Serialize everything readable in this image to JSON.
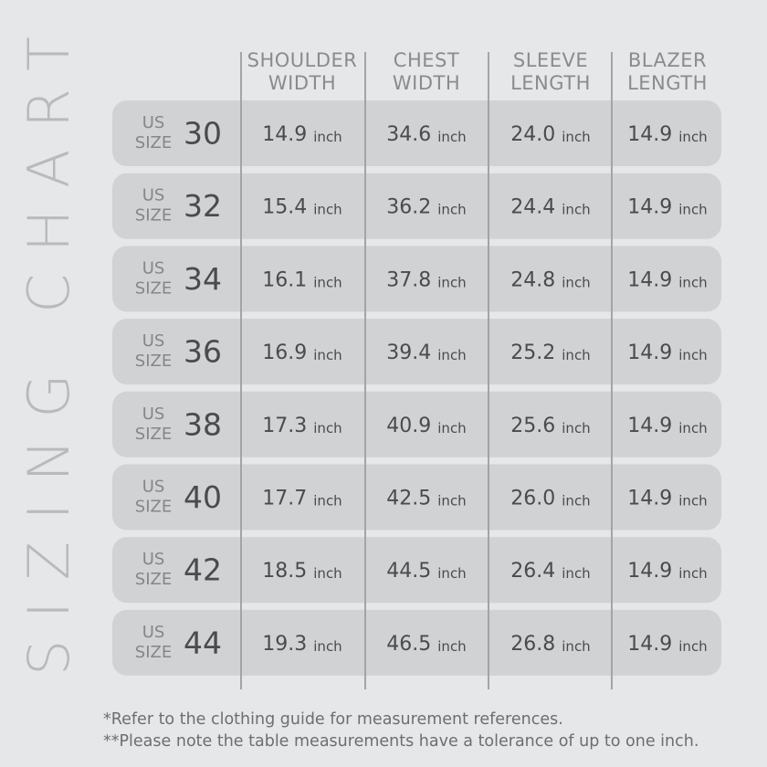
{
  "title": "SIZING CHART",
  "table": {
    "headers": [
      [
        "SHOULDER",
        "WIDTH"
      ],
      [
        "CHEST",
        "WIDTH"
      ],
      [
        "SLEEVE",
        "LENGTH"
      ],
      [
        "BLAZER",
        "LENGTH"
      ]
    ],
    "rows": [
      {
        "label": [
          "US",
          "SIZE"
        ],
        "size": "30",
        "cells": [
          {
            "value": "14.9",
            "unit": "inch"
          },
          {
            "value": "34.6",
            "unit": "inch"
          },
          {
            "value": "24.0",
            "unit": "inch"
          },
          {
            "value": "14.9",
            "unit": "inch"
          }
        ]
      },
      {
        "label": [
          "US",
          "SIZE"
        ],
        "size": "32",
        "cells": [
          {
            "value": "15.4",
            "unit": "inch"
          },
          {
            "value": "36.2",
            "unit": "inch"
          },
          {
            "value": "24.4",
            "unit": "inch"
          },
          {
            "value": "14.9",
            "unit": "inch"
          }
        ]
      },
      {
        "label": [
          "US",
          "SIZE"
        ],
        "size": "34",
        "cells": [
          {
            "value": "16.1",
            "unit": "inch"
          },
          {
            "value": "37.8",
            "unit": "inch"
          },
          {
            "value": "24.8",
            "unit": "inch"
          },
          {
            "value": "14.9",
            "unit": "inch"
          }
        ]
      },
      {
        "label": [
          "US",
          "SIZE"
        ],
        "size": "36",
        "cells": [
          {
            "value": "16.9",
            "unit": "inch"
          },
          {
            "value": "39.4",
            "unit": "inch"
          },
          {
            "value": "25.2",
            "unit": "inch"
          },
          {
            "value": "14.9",
            "unit": "inch"
          }
        ]
      },
      {
        "label": [
          "US",
          "SIZE"
        ],
        "size": "38",
        "cells": [
          {
            "value": "17.3",
            "unit": "inch"
          },
          {
            "value": "40.9",
            "unit": "inch"
          },
          {
            "value": "25.6",
            "unit": "inch"
          },
          {
            "value": "14.9",
            "unit": "inch"
          }
        ]
      },
      {
        "label": [
          "US",
          "SIZE"
        ],
        "size": "40",
        "cells": [
          {
            "value": "17.7",
            "unit": "inch"
          },
          {
            "value": "42.5",
            "unit": "inch"
          },
          {
            "value": "26.0",
            "unit": "inch"
          },
          {
            "value": "14.9",
            "unit": "inch"
          }
        ]
      },
      {
        "label": [
          "US",
          "SIZE"
        ],
        "size": "42",
        "cells": [
          {
            "value": "18.5",
            "unit": "inch"
          },
          {
            "value": "44.5",
            "unit": "inch"
          },
          {
            "value": "26.4",
            "unit": "inch"
          },
          {
            "value": "14.9",
            "unit": "inch"
          }
        ]
      },
      {
        "label": [
          "US",
          "SIZE"
        ],
        "size": "44",
        "cells": [
          {
            "value": "19.3",
            "unit": "inch"
          },
          {
            "value": "46.5",
            "unit": "inch"
          },
          {
            "value": "26.8",
            "unit": "inch"
          },
          {
            "value": "14.9",
            "unit": "inch"
          }
        ]
      }
    ]
  },
  "notes": [
    "*Refer to the clothing guide for measurement references.",
    "**Please note the table measurements have a tolerance of up to one inch."
  ]
}
